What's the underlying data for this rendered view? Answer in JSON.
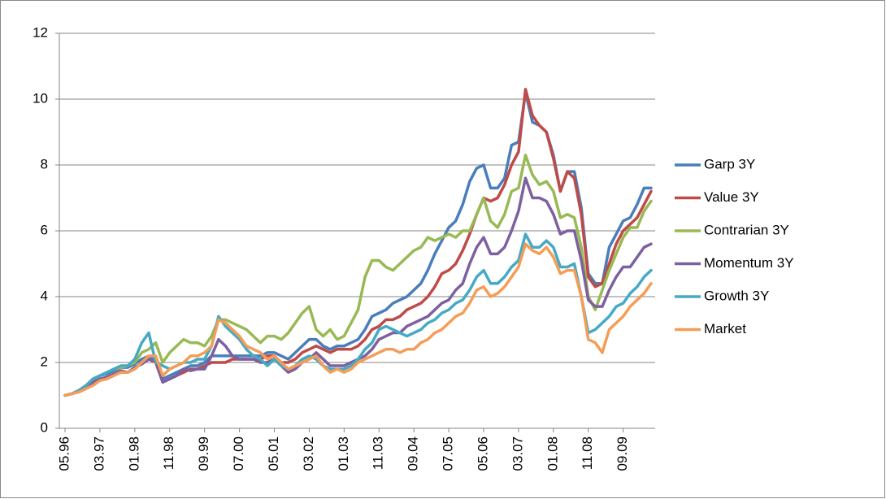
{
  "chart_data": {
    "type": "line",
    "categories": [
      "05.96",
      null,
      null,
      null,
      null,
      "03.97",
      null,
      null,
      null,
      null,
      "01.98",
      null,
      null,
      null,
      null,
      "11.98",
      null,
      null,
      null,
      null,
      "09.99",
      null,
      null,
      null,
      null,
      "07.00",
      null,
      null,
      null,
      null,
      "05.01",
      null,
      null,
      null,
      null,
      "03.02",
      null,
      null,
      null,
      null,
      "01.03",
      null,
      null,
      null,
      null,
      "11.03",
      null,
      null,
      null,
      null,
      "09.04",
      null,
      null,
      null,
      null,
      "07.05",
      null,
      null,
      null,
      null,
      "05.06",
      null,
      null,
      null,
      null,
      "03.07",
      null,
      null,
      null,
      null,
      "01.08",
      null,
      null,
      null,
      null,
      "11.08",
      null,
      null,
      null,
      null,
      "09.09",
      null,
      null,
      null,
      null
    ],
    "ylim": [
      0,
      12
    ],
    "yticks": [
      0,
      2,
      4,
      6,
      8,
      10,
      12
    ],
    "grid": true,
    "legend": "right",
    "series": [
      {
        "name": "Garp 3Y",
        "color": "#4a7ebb",
        "values": [
          1.0,
          1.05,
          1.15,
          1.3,
          1.5,
          1.6,
          1.65,
          1.75,
          1.85,
          1.85,
          1.95,
          2.1,
          2.2,
          2.1,
          1.5,
          1.6,
          1.7,
          1.8,
          1.9,
          1.9,
          2.0,
          2.2,
          2.2,
          2.2,
          2.2,
          2.2,
          2.2,
          2.2,
          2.2,
          2.3,
          2.3,
          2.2,
          2.1,
          2.3,
          2.5,
          2.7,
          2.7,
          2.5,
          2.4,
          2.5,
          2.5,
          2.6,
          2.7,
          3.0,
          3.4,
          3.5,
          3.6,
          3.8,
          3.9,
          4.0,
          4.2,
          4.4,
          4.8,
          5.3,
          5.7,
          6.1,
          6.3,
          6.8,
          7.5,
          7.9,
          8.0,
          7.3,
          7.3,
          7.6,
          8.6,
          8.7,
          10.2,
          9.3,
          9.2,
          9.0,
          8.3,
          7.2,
          7.8,
          7.8,
          6.7,
          4.7,
          4.4,
          4.4,
          5.5,
          5.9,
          6.3,
          6.4,
          6.8,
          7.3,
          7.3
        ]
      },
      {
        "name": "Value 3Y",
        "color": "#be4b48",
        "values": [
          1.0,
          1.05,
          1.15,
          1.3,
          1.4,
          1.5,
          1.55,
          1.65,
          1.7,
          1.7,
          1.8,
          2.0,
          2.1,
          2.0,
          1.4,
          1.5,
          1.6,
          1.7,
          1.8,
          1.8,
          1.9,
          2.0,
          2.0,
          2.0,
          2.1,
          2.1,
          2.1,
          2.1,
          2.1,
          2.2,
          2.2,
          2.0,
          2.0,
          2.1,
          2.3,
          2.4,
          2.5,
          2.4,
          2.3,
          2.4,
          2.4,
          2.4,
          2.5,
          2.7,
          3.0,
          3.1,
          3.3,
          3.3,
          3.4,
          3.6,
          3.7,
          3.8,
          4.0,
          4.3,
          4.7,
          4.8,
          5.0,
          5.4,
          5.9,
          6.5,
          7.0,
          6.9,
          7.0,
          7.4,
          8.0,
          8.4,
          10.3,
          9.5,
          9.2,
          9.0,
          8.2,
          7.2,
          7.8,
          7.6,
          6.5,
          4.6,
          4.3,
          4.4,
          5.0,
          5.6,
          6.0,
          6.2,
          6.4,
          6.8,
          7.2
        ]
      },
      {
        "name": "Contrarian 3Y",
        "color": "#98b954",
        "values": [
          1.0,
          1.05,
          1.15,
          1.3,
          1.45,
          1.6,
          1.7,
          1.8,
          1.85,
          1.9,
          2.0,
          2.3,
          2.4,
          2.6,
          2.0,
          2.3,
          2.5,
          2.7,
          2.6,
          2.6,
          2.5,
          2.8,
          3.3,
          3.3,
          3.2,
          3.1,
          3.0,
          2.8,
          2.6,
          2.8,
          2.8,
          2.7,
          2.9,
          3.2,
          3.5,
          3.7,
          3.0,
          2.8,
          3.0,
          2.7,
          2.8,
          3.2,
          3.6,
          4.6,
          5.1,
          5.1,
          4.9,
          4.8,
          5.0,
          5.2,
          5.4,
          5.5,
          5.8,
          5.7,
          5.8,
          5.9,
          5.8,
          6.0,
          6.0,
          6.5,
          7.0,
          6.3,
          6.1,
          6.5,
          7.2,
          7.3,
          8.3,
          7.7,
          7.4,
          7.5,
          7.2,
          6.4,
          6.5,
          6.4,
          5.5,
          4.0,
          3.6,
          4.2,
          4.8,
          5.3,
          5.8,
          6.1,
          6.1,
          6.6,
          6.9
        ]
      },
      {
        "name": "Momentum 3Y",
        "color": "#7d60a0",
        "values": [
          1.0,
          1.05,
          1.15,
          1.25,
          1.4,
          1.5,
          1.55,
          1.65,
          1.75,
          1.7,
          1.85,
          1.95,
          2.1,
          2.05,
          1.4,
          1.5,
          1.6,
          1.8,
          1.75,
          1.8,
          1.8,
          2.2,
          2.7,
          2.5,
          2.2,
          2.1,
          2.1,
          2.1,
          2.0,
          2.0,
          2.1,
          1.9,
          1.7,
          1.8,
          2.0,
          2.1,
          2.3,
          2.1,
          1.9,
          1.9,
          1.9,
          2.0,
          2.1,
          2.2,
          2.4,
          2.7,
          2.8,
          2.9,
          2.9,
          3.1,
          3.2,
          3.3,
          3.4,
          3.6,
          3.8,
          3.9,
          4.2,
          4.4,
          5.0,
          5.5,
          5.8,
          5.3,
          5.3,
          5.5,
          6.0,
          6.6,
          7.6,
          7.0,
          7.0,
          6.9,
          6.5,
          5.9,
          6.0,
          6.0,
          5.1,
          3.9,
          3.7,
          3.7,
          4.2,
          4.6,
          4.9,
          4.9,
          5.2,
          5.5,
          5.6
        ]
      },
      {
        "name": "Growth 3Y",
        "color": "#46aac5",
        "values": [
          1.0,
          1.05,
          1.15,
          1.3,
          1.5,
          1.6,
          1.7,
          1.8,
          1.9,
          1.9,
          2.1,
          2.6,
          2.9,
          2.0,
          1.9,
          1.8,
          1.9,
          2.0,
          2.0,
          2.1,
          2.1,
          2.5,
          3.4,
          3.1,
          2.9,
          2.7,
          2.4,
          2.2,
          2.1,
          1.9,
          2.1,
          1.9,
          1.8,
          1.9,
          2.1,
          2.2,
          2.1,
          1.9,
          1.8,
          1.8,
          1.8,
          1.9,
          2.1,
          2.4,
          2.6,
          3.0,
          3.1,
          3.0,
          2.9,
          2.8,
          2.9,
          3.0,
          3.2,
          3.3,
          3.5,
          3.6,
          3.8,
          3.9,
          4.2,
          4.6,
          4.8,
          4.4,
          4.4,
          4.6,
          4.9,
          5.1,
          5.9,
          5.5,
          5.5,
          5.7,
          5.5,
          4.9,
          4.9,
          5.0,
          4.0,
          2.9,
          3.0,
          3.2,
          3.4,
          3.7,
          3.8,
          4.1,
          4.3,
          4.6,
          4.8
        ]
      },
      {
        "name": "Market",
        "color": "#f59d56",
        "values": [
          1.0,
          1.05,
          1.1,
          1.2,
          1.3,
          1.45,
          1.5,
          1.6,
          1.7,
          1.7,
          1.8,
          2.0,
          2.2,
          2.2,
          1.6,
          1.8,
          1.9,
          2.0,
          2.2,
          2.2,
          2.3,
          2.5,
          3.3,
          3.2,
          3.0,
          2.8,
          2.5,
          2.4,
          2.3,
          2.1,
          2.2,
          2.0,
          1.8,
          1.9,
          2.0,
          2.1,
          2.2,
          1.9,
          1.7,
          1.8,
          1.7,
          1.8,
          2.0,
          2.1,
          2.2,
          2.3,
          2.4,
          2.4,
          2.3,
          2.4,
          2.4,
          2.6,
          2.7,
          2.9,
          3.0,
          3.2,
          3.4,
          3.5,
          3.8,
          4.2,
          4.3,
          4.0,
          4.1,
          4.3,
          4.6,
          4.9,
          5.6,
          5.4,
          5.3,
          5.5,
          5.2,
          4.7,
          4.8,
          4.8,
          4.0,
          2.7,
          2.6,
          2.3,
          3.0,
          3.2,
          3.4,
          3.7,
          3.9,
          4.1,
          4.4
        ]
      }
    ]
  }
}
